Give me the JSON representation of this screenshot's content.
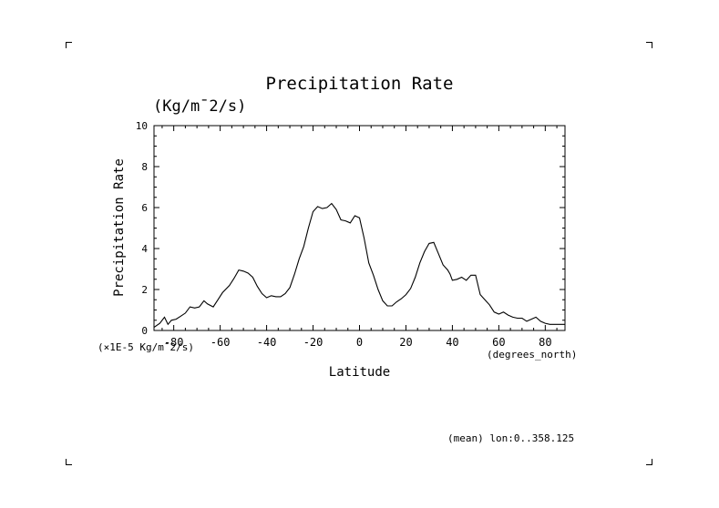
{
  "header": {
    "title": "Precipitation Rate",
    "units": "(Kg/m¯2/s)"
  },
  "footer": {
    "note": "(mean) lon:0..358.125"
  },
  "colors": {
    "line": "#000000",
    "background": "#ffffff"
  },
  "chart_data": {
    "type": "line",
    "title": "Precipitation Rate",
    "units": "(Kg/m¯2/s)",
    "xlabel": "Latitude",
    "xunits": "(degrees_north)",
    "ylabel": "Precipitation Rate",
    "yscale_label": "(×1E-5 Kg/m¯2/s)",
    "xlim": [
      -88.5,
      88.5
    ],
    "ylim": [
      0,
      10
    ],
    "xticks": [
      -80,
      -60,
      -40,
      -20,
      0,
      20,
      40,
      60,
      80
    ],
    "xtick_labels": [
      "-80",
      "-60",
      "-40",
      "-20",
      "0",
      "20",
      "40",
      "60",
      "80"
    ],
    "yticks": [
      0,
      2,
      4,
      6,
      8,
      10
    ],
    "ytick_labels": [
      "0",
      "2",
      "4",
      "6",
      "8",
      "10"
    ],
    "series": [
      {
        "name": "Precipitation Rate",
        "x": [
          -88.5,
          -86,
          -84,
          -82.5,
          -81,
          -79,
          -77,
          -75,
          -73,
          -71,
          -69,
          -67,
          -65.5,
          -63,
          -61,
          -59,
          -56,
          -54,
          -52,
          -50,
          -48,
          -46,
          -44,
          -42,
          -40,
          -38,
          -36,
          -34,
          -32,
          -30,
          -28,
          -26,
          -24,
          -22,
          -20,
          -18,
          -16,
          -14,
          -12,
          -10,
          -8,
          -6,
          -4,
          -2,
          0,
          2,
          4,
          6,
          8,
          10,
          12,
          14,
          16,
          18,
          20,
          22,
          24,
          26,
          28,
          30,
          32,
          34,
          36,
          38,
          39,
          40,
          42,
          44,
          46,
          48,
          50,
          52,
          54,
          56,
          58,
          60,
          62,
          64,
          66,
          68,
          70,
          72,
          74,
          76,
          78,
          80,
          82,
          84,
          86,
          88.5
        ],
        "values": [
          0.15,
          0.35,
          0.65,
          0.3,
          0.5,
          0.55,
          0.7,
          0.85,
          1.15,
          1.1,
          1.15,
          1.45,
          1.3,
          1.15,
          1.5,
          1.85,
          2.2,
          2.55,
          2.95,
          2.9,
          2.8,
          2.6,
          2.15,
          1.8,
          1.6,
          1.7,
          1.65,
          1.65,
          1.8,
          2.1,
          2.75,
          3.5,
          4.1,
          5.0,
          5.8,
          6.05,
          5.95,
          6.0,
          6.2,
          5.9,
          5.4,
          5.35,
          5.25,
          5.6,
          5.5,
          4.5,
          3.3,
          2.7,
          2.0,
          1.45,
          1.2,
          1.2,
          1.4,
          1.55,
          1.75,
          2.05,
          2.6,
          3.3,
          3.85,
          4.25,
          4.3,
          3.75,
          3.2,
          2.95,
          2.75,
          2.45,
          2.5,
          2.6,
          2.45,
          2.7,
          2.7,
          1.75,
          1.5,
          1.25,
          0.9,
          0.8,
          0.9,
          0.75,
          0.65,
          0.6,
          0.6,
          0.45,
          0.55,
          0.65,
          0.45,
          0.35,
          0.3,
          0.3,
          0.3,
          0.3
        ]
      }
    ]
  }
}
